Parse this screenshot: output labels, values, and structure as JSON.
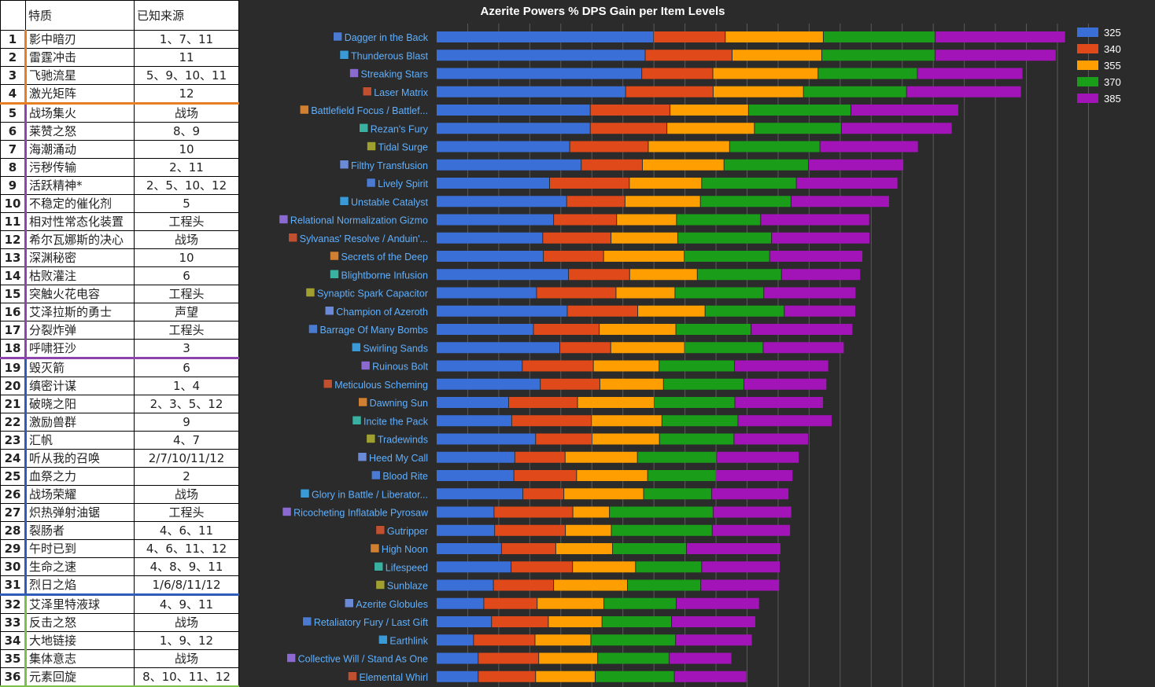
{
  "table": {
    "headers": [
      "特质",
      "已知来源"
    ],
    "rows": [
      {
        "idx": "1",
        "name": "影中暗刃",
        "source": "1、7、11"
      },
      {
        "idx": "2",
        "name": "雷霆冲击",
        "source": "11"
      },
      {
        "idx": "3",
        "name": "飞驰流星",
        "source": "5、9、10、11"
      },
      {
        "idx": "4",
        "name": "激光矩阵",
        "source": "12"
      },
      {
        "idx": "5",
        "name": "战场集火",
        "source": "战场"
      },
      {
        "idx": "6",
        "name": "莱赞之怒",
        "source": "8、9"
      },
      {
        "idx": "7",
        "name": "海潮涌动",
        "source": "10"
      },
      {
        "idx": "8",
        "name": "污秽传输",
        "source": "2、11"
      },
      {
        "idx": "9",
        "name": "活跃精神*",
        "source": "2、5、10、12"
      },
      {
        "idx": "10",
        "name": "不稳定的催化剂",
        "source": "5"
      },
      {
        "idx": "11",
        "name": "相对性常态化装置",
        "source": "工程头"
      },
      {
        "idx": "12",
        "name": "希尔瓦娜斯的决心",
        "source": "战场"
      },
      {
        "idx": "13",
        "name": "深渊秘密",
        "source": "10"
      },
      {
        "idx": "14",
        "name": "枯败灌注",
        "source": "6"
      },
      {
        "idx": "15",
        "name": "突触火花电容",
        "source": "工程头"
      },
      {
        "idx": "16",
        "name": "艾泽拉斯的勇士",
        "source": "声望"
      },
      {
        "idx": "17",
        "name": "分裂炸弹",
        "source": "工程头"
      },
      {
        "idx": "18",
        "name": "呼啸狂沙",
        "source": "3"
      },
      {
        "idx": "19",
        "name": "毁灭箭",
        "source": "6"
      },
      {
        "idx": "20",
        "name": "缜密计谋",
        "source": "1、4"
      },
      {
        "idx": "21",
        "name": "破晓之阳",
        "source": "2、3、5、12"
      },
      {
        "idx": "22",
        "name": "激励兽群",
        "source": "9"
      },
      {
        "idx": "23",
        "name": "汇帆",
        "source": "4、7"
      },
      {
        "idx": "24",
        "name": "听从我的召唤",
        "source": "2/7/10/11/12"
      },
      {
        "idx": "25",
        "name": "血祭之力",
        "source": "2"
      },
      {
        "idx": "26",
        "name": "战场荣耀",
        "source": "战场"
      },
      {
        "idx": "27",
        "name": "炽热弹射油锯",
        "source": "工程头"
      },
      {
        "idx": "28",
        "name": "裂肠者",
        "source": "4、6、11"
      },
      {
        "idx": "29",
        "name": "午时已到",
        "source": "4、6、11、12"
      },
      {
        "idx": "30",
        "name": "生命之速",
        "source": "4、8、9、11"
      },
      {
        "idx": "31",
        "name": "烈日之焰",
        "source": "1/6/8/11/12"
      },
      {
        "idx": "32",
        "name": "艾泽里特液球",
        "source": "4、9、11"
      },
      {
        "idx": "33",
        "name": "反击之怒",
        "source": "战场"
      },
      {
        "idx": "34",
        "name": "大地链接",
        "source": "1、9、12"
      },
      {
        "idx": "35",
        "name": "集体意志",
        "source": "战场"
      },
      {
        "idx": "36",
        "name": "元素回旋",
        "source": "8、10、11、12"
      }
    ],
    "tier_colors": [
      "#e67e22",
      "#8e44ad",
      "#2e5cb8",
      "#7cbf4a"
    ]
  },
  "chart_data": {
    "type": "bar",
    "orientation": "horizontal",
    "stacked": true,
    "title": "Azerite Powers % DPS Gain per Item Levels",
    "xlabel": "",
    "ylabel": "",
    "xlim": [
      0,
      21
    ],
    "grid": true,
    "legend_position": "top-right",
    "categories": [
      "Dagger in the Back",
      "Thunderous Blast",
      "Streaking Stars",
      "Laser Matrix",
      "Battlefield Focus / Battlef...",
      "Rezan's Fury",
      "Tidal Surge",
      "Filthy Transfusion",
      "Lively Spirit",
      "Unstable Catalyst",
      "Relational Normalization Gizmo",
      "Sylvanas' Resolve / Anduin'...",
      "Secrets of the Deep",
      "Blightborne Infusion",
      "Synaptic Spark Capacitor",
      "Champion of Azeroth",
      "Barrage Of Many Bombs",
      "Swirling Sands",
      "Ruinous Bolt",
      "Meticulous Scheming",
      "Dawning Sun",
      "Incite the Pack",
      "Tradewinds",
      "Heed My Call",
      "Blood Rite",
      "Glory in Battle / Liberator...",
      "Ricocheting Inflatable Pyrosaw",
      "Gutripper",
      "High Noon",
      "Lifespeed",
      "Sunblaze",
      "Azerite Globules",
      "Retaliatory Fury / Last Gift",
      "Earthlink",
      "Collective Will / Stand As One",
      "Elemental Whirl"
    ],
    "series": [
      {
        "name": "325",
        "color": "#3a6fd8",
        "values": [
          7.0,
          6.73,
          6.62,
          6.1,
          4.96,
          4.96,
          4.3,
          4.67,
          3.65,
          4.2,
          3.78,
          3.43,
          3.45,
          4.26,
          3.23,
          4.22,
          3.13,
          3.98,
          2.77,
          3.35,
          2.33,
          2.43,
          3.2,
          2.53,
          2.5,
          2.79,
          1.86,
          1.88,
          2.1,
          2.41,
          1.84,
          1.53,
          1.78,
          1.2,
          1.35,
          1.35
        ]
      },
      {
        "name": "340",
        "color": "#e04a1a",
        "values": [
          2.31,
          2.8,
          2.29,
          2.82,
          2.57,
          2.47,
          2.53,
          1.97,
          2.57,
          1.88,
          2.03,
          2.2,
          1.94,
          1.97,
          2.56,
          2.27,
          2.12,
          1.64,
          2.29,
          1.92,
          2.22,
          2.57,
          1.82,
          1.62,
          2.02,
          1.32,
          2.54,
          2.28,
          1.75,
          1.98,
          1.94,
          1.72,
          1.83,
          1.98,
          1.95,
          1.85
        ]
      },
      {
        "name": "355",
        "color": "#ff9e00",
        "values": [
          3.16,
          2.89,
          3.39,
          2.91,
          2.53,
          2.82,
          2.62,
          2.63,
          2.33,
          2.43,
          1.93,
          2.15,
          2.6,
          2.18,
          1.9,
          2.17,
          2.47,
          2.38,
          2.12,
          2.05,
          2.47,
          2.27,
          2.17,
          2.33,
          2.29,
          2.57,
          1.18,
          1.48,
          1.83,
          2.03,
          2.38,
          2.15,
          1.73,
          1.8,
          1.9,
          1.92
        ]
      },
      {
        "name": "370",
        "color": "#1a9e1a",
        "values": [
          3.6,
          3.65,
          3.2,
          3.32,
          3.3,
          2.8,
          2.91,
          2.72,
          3.05,
          2.92,
          2.71,
          3.02,
          2.75,
          2.71,
          2.86,
          2.55,
          2.42,
          2.53,
          2.43,
          2.59,
          2.6,
          2.45,
          2.4,
          2.55,
          2.2,
          2.19,
          3.34,
          3.25,
          2.38,
          2.13,
          2.36,
          2.33,
          2.24,
          2.73,
          2.3,
          2.55
        ]
      },
      {
        "name": "385",
        "color": "#a314b8",
        "values": [
          4.2,
          3.9,
          3.4,
          3.7,
          3.47,
          3.57,
          3.17,
          3.07,
          3.27,
          3.17,
          3.51,
          3.17,
          3.0,
          2.55,
          2.97,
          2.3,
          3.28,
          2.61,
          3.03,
          2.67,
          2.85,
          3.03,
          2.4,
          2.66,
          2.48,
          2.49,
          2.53,
          2.52,
          3.04,
          2.53,
          2.54,
          2.68,
          2.71,
          2.47,
          2.02,
          2.33
        ]
      }
    ]
  }
}
